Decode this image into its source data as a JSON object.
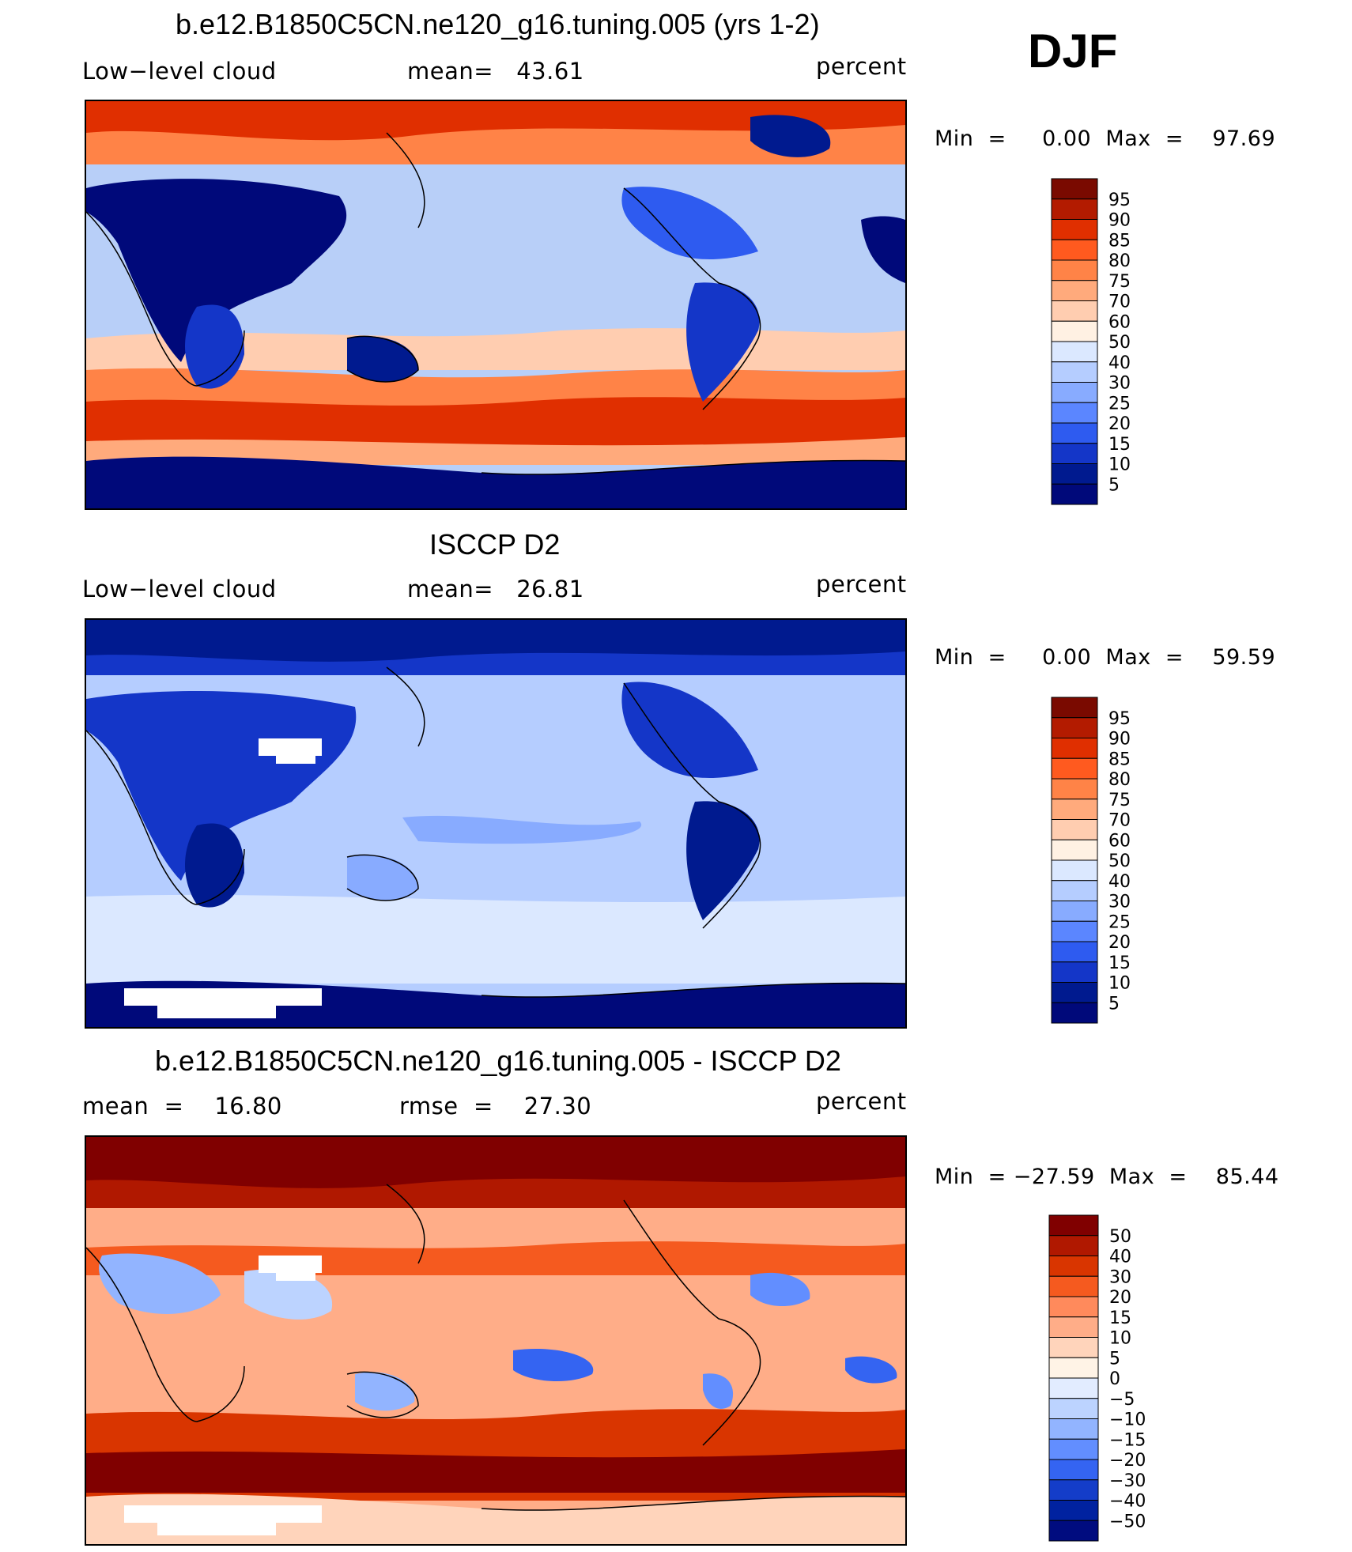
{
  "season": "DJF",
  "panels": [
    {
      "id": "model",
      "title": "b.e12.B1850C5CN.ne120_g16.tuning.005 (yrs 1-2)",
      "left_label": "Low−level cloud",
      "mean_text": "mean=   43.61",
      "right_label": "percent",
      "stats_text": "Min  =     0.00  Max  =    97.69",
      "colorbar": {
        "labels": [
          "95",
          "90",
          "85",
          "80",
          "75",
          "70",
          "60",
          "50",
          "40",
          "30",
          "25",
          "20",
          "15",
          "10",
          "5"
        ],
        "colors": [
          "#7a0a00",
          "#b31b00",
          "#e02f00",
          "#ff5a1f",
          "#ff8347",
          "#ffaa7c",
          "#ffcdb0",
          "#fff1e3",
          "#dbe8ff",
          "#b5cdff",
          "#88abff",
          "#5b86ff",
          "#2e5bf0",
          "#1436c8",
          "#001a8f",
          "#00097a"
        ]
      },
      "map_palette": {
        "ocean_mid": "#b8cff8",
        "storm": "#e23a05",
        "cold": "#00097a",
        "warm": "#ff9a6b"
      }
    },
    {
      "id": "obs",
      "title": "ISCCP D2",
      "left_label": "Low−level cloud",
      "mean_text": "mean=   26.81",
      "right_label": "percent",
      "stats_text": "Min  =     0.00  Max  =    59.59",
      "colorbar": {
        "labels": [
          "95",
          "90",
          "85",
          "80",
          "75",
          "70",
          "60",
          "50",
          "40",
          "30",
          "25",
          "20",
          "15",
          "10",
          "5"
        ],
        "colors": [
          "#7a0a00",
          "#b31b00",
          "#e02f00",
          "#ff5a1f",
          "#ff8347",
          "#ffaa7c",
          "#ffcdb0",
          "#fff1e3",
          "#dbe8ff",
          "#b5cdff",
          "#88abff",
          "#5b86ff",
          "#2e5bf0",
          "#1436c8",
          "#001a8f",
          "#00097a"
        ]
      },
      "map_palette": {
        "ocean_mid": "#b8cff8",
        "land": "#1436c8",
        "cold": "#00097a",
        "missing": "#ffffff"
      }
    },
    {
      "id": "diff",
      "title": "b.e12.B1850C5CN.ne120_g16.tuning.005 - ISCCP D2",
      "left_label": "mean  =    16.80",
      "mean_text": "rmse  =    27.30",
      "right_label": "percent",
      "stats_text": "Min  = −27.59  Max  =    85.44",
      "colorbar": {
        "labels": [
          "50",
          "40",
          "30",
          "20",
          "15",
          "10",
          "5",
          "0",
          "−5",
          "−10",
          "−15",
          "−20",
          "−30",
          "−40",
          "−50"
        ],
        "colors": [
          "#800000",
          "#b01800",
          "#d93500",
          "#f55a1f",
          "#ff8a5c",
          "#ffad88",
          "#ffd4bb",
          "#fff3e6",
          "#e2ecff",
          "#bcd3ff",
          "#92b4ff",
          "#628eff",
          "#3464f2",
          "#143dc9",
          "#0022a0",
          "#000c7f"
        ]
      },
      "map_palette": {
        "high": "#800000",
        "mid": "#f55a1f",
        "low": "#ffd4bb",
        "neg": "#628eff",
        "missing": "#ffffff"
      }
    }
  ]
}
